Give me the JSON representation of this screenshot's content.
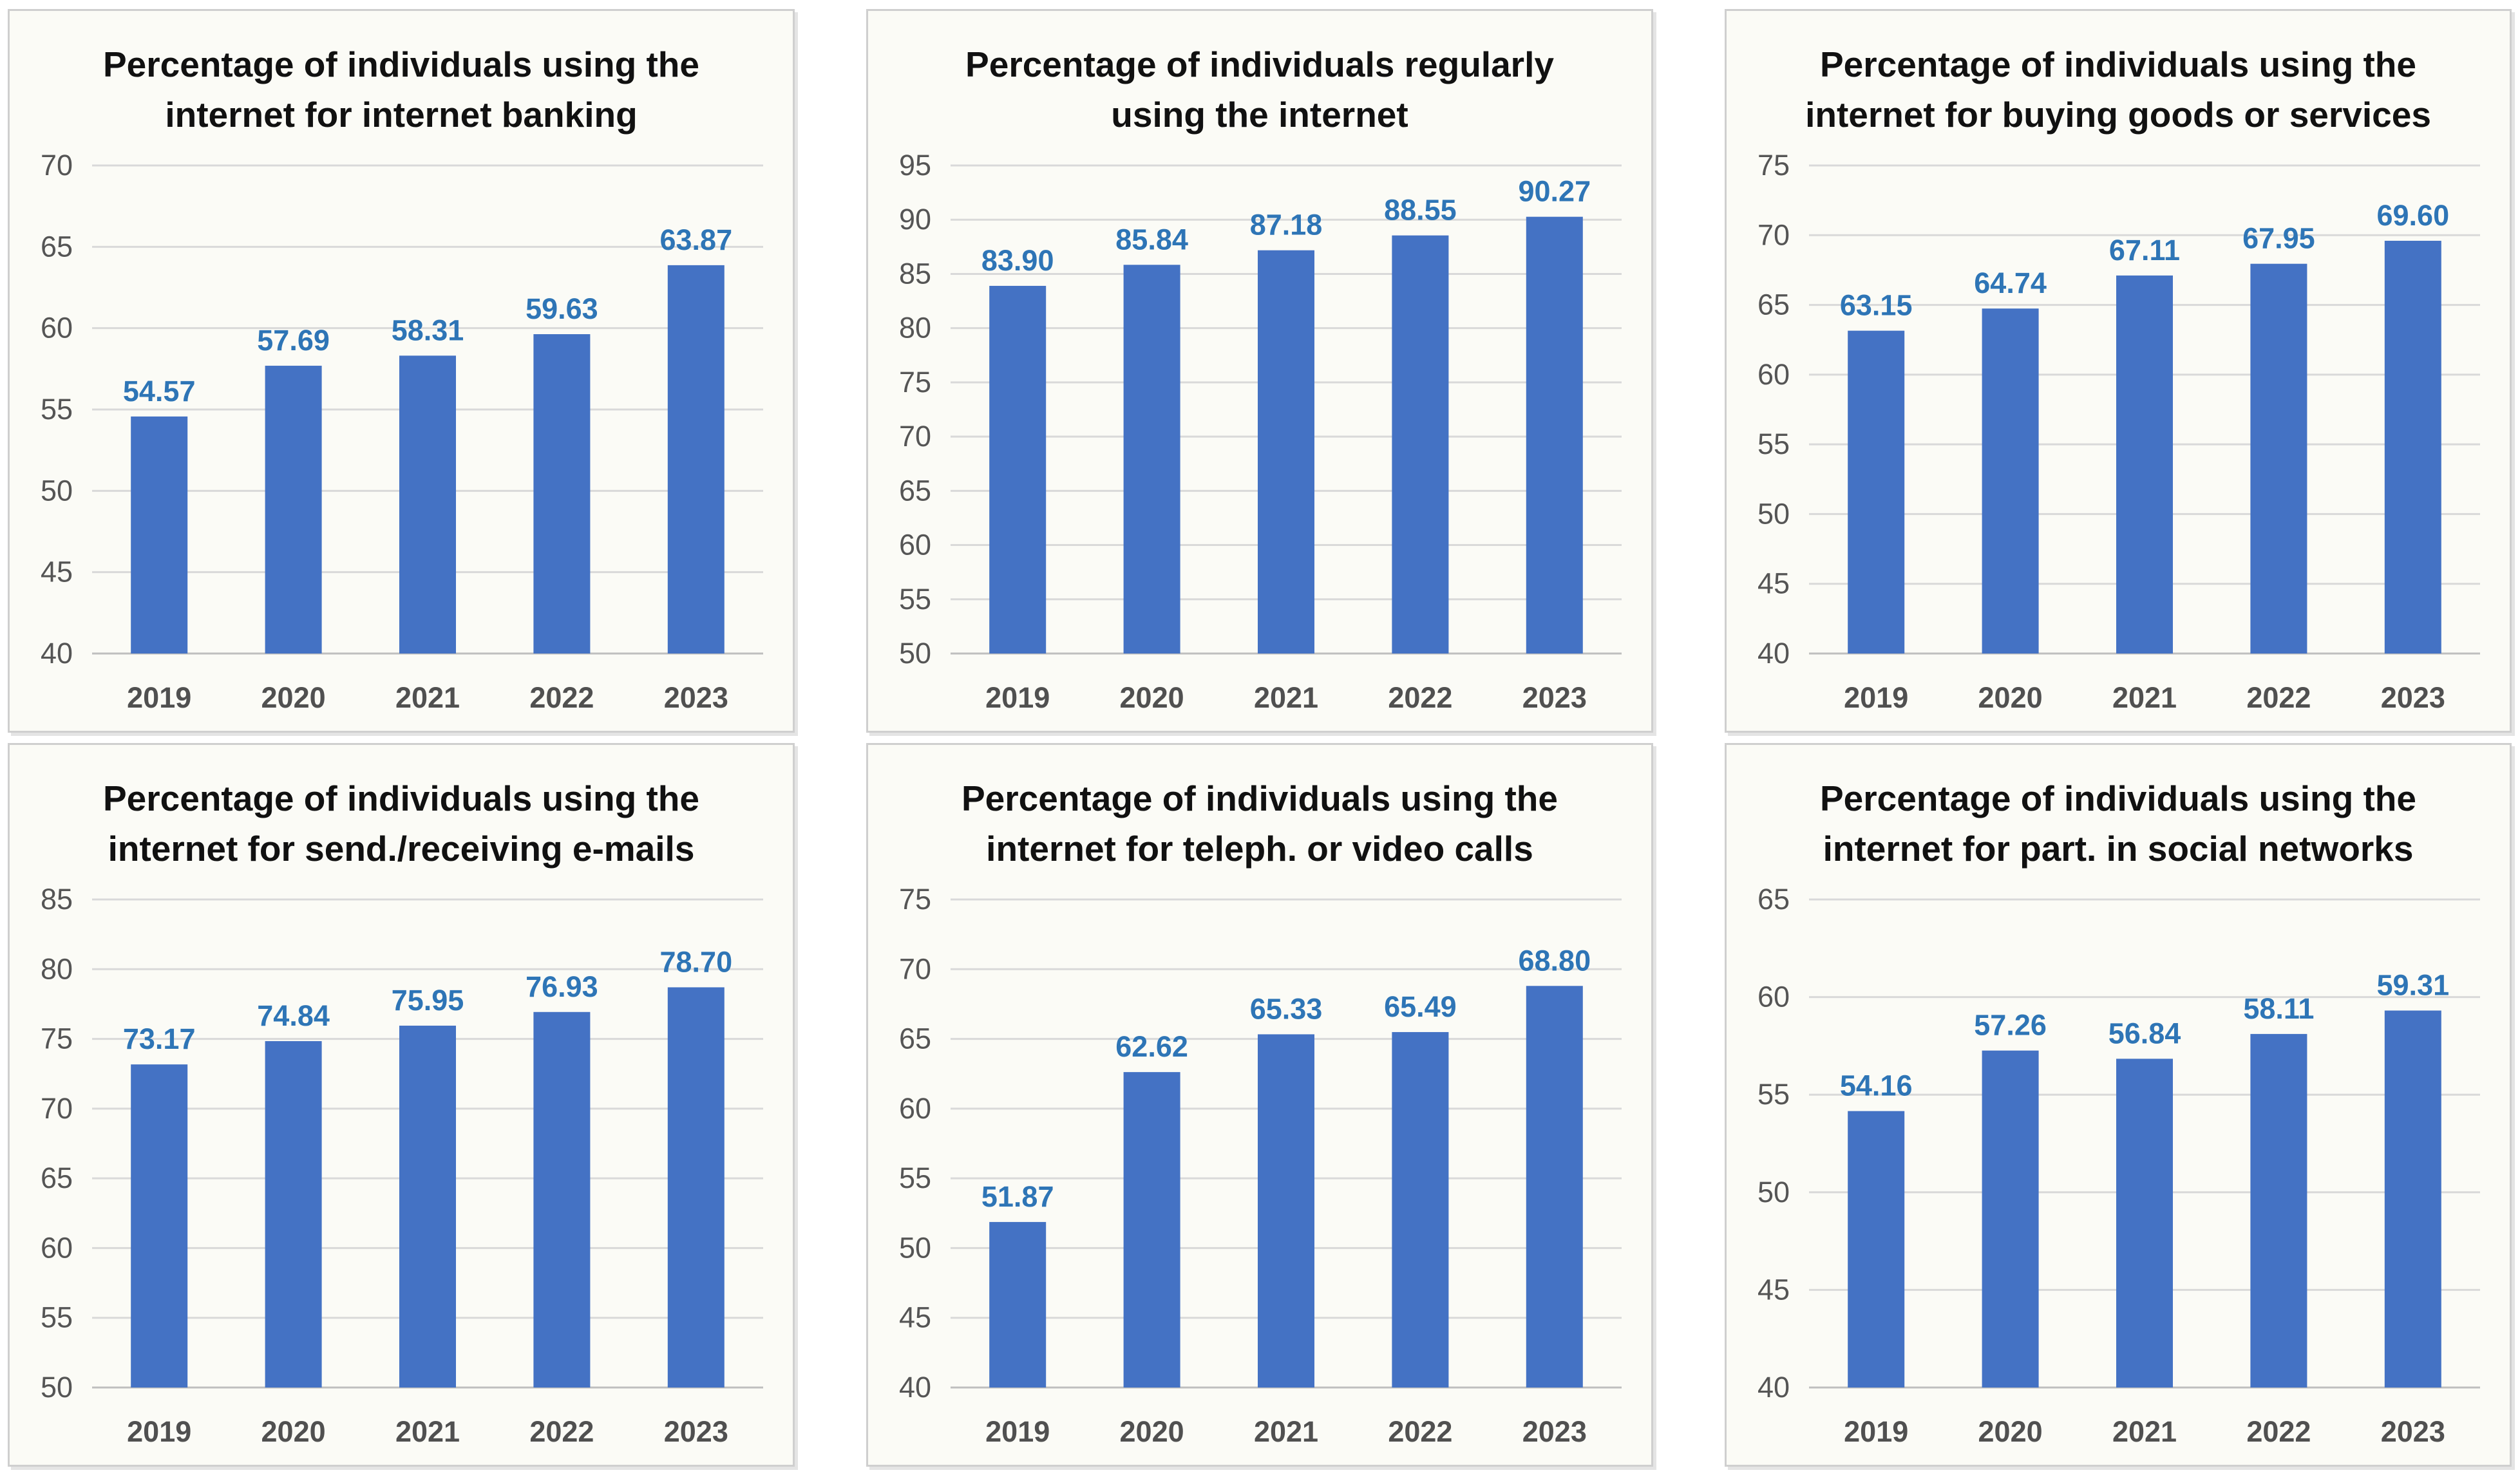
{
  "colors": {
    "bar": "#4472c4",
    "label": "#2e75b6",
    "grid": "#d9d9d9",
    "axis": "#bfbfbf"
  },
  "chart_data": [
    {
      "type": "bar",
      "title": "Percentage of individuals using the internet for internet banking",
      "title_lines": [
        "Percentage of individuals using the",
        "internet for internet banking"
      ],
      "categories": [
        "2019",
        "2020",
        "2021",
        "2022",
        "2023"
      ],
      "values": [
        54.57,
        57.69,
        58.31,
        59.63,
        63.87
      ],
      "value_labels": [
        "54.57",
        "57.69",
        "58.31",
        "59.63",
        "63.87"
      ],
      "ylim": [
        40,
        70
      ],
      "yticks": [
        "40",
        "45",
        "50",
        "55",
        "60",
        "65",
        "70"
      ],
      "grid": true
    },
    {
      "type": "bar",
      "title": "Percentage of individuals regularly using the internet",
      "title_lines": [
        "Percentage of individuals regularly",
        "using the internet"
      ],
      "categories": [
        "2019",
        "2020",
        "2021",
        "2022",
        "2023"
      ],
      "values": [
        83.9,
        85.84,
        87.18,
        88.55,
        90.27
      ],
      "value_labels": [
        "83.90",
        "85.84",
        "87.18",
        "88.55",
        "90.27"
      ],
      "ylim": [
        50,
        95
      ],
      "yticks": [
        "50",
        "55",
        "60",
        "65",
        "70",
        "75",
        "80",
        "85",
        "90",
        "95"
      ],
      "grid": true
    },
    {
      "type": "bar",
      "title": "Percentage of individuals using the internet for buying goods or services",
      "title_lines": [
        "Percentage of individuals using the",
        "internet for buying goods or services"
      ],
      "categories": [
        "2019",
        "2020",
        "2021",
        "2022",
        "2023"
      ],
      "values": [
        63.15,
        64.74,
        67.11,
        67.95,
        69.6
      ],
      "value_labels": [
        "63.15",
        "64.74",
        "67.11",
        "67.95",
        "69.60"
      ],
      "ylim": [
        40,
        75
      ],
      "yticks": [
        "40",
        "45",
        "50",
        "55",
        "60",
        "65",
        "70",
        "75"
      ],
      "grid": true
    },
    {
      "type": "bar",
      "title": "Percentage of individuals using the internet for send./receiving e-mails",
      "title_lines": [
        "Percentage of individuals using the",
        "internet for send./receiving e-mails"
      ],
      "categories": [
        "2019",
        "2020",
        "2021",
        "2022",
        "2023"
      ],
      "values": [
        73.17,
        74.84,
        75.95,
        76.93,
        78.7
      ],
      "value_labels": [
        "73.17",
        "74.84",
        "75.95",
        "76.93",
        "78.70"
      ],
      "ylim": [
        50,
        85
      ],
      "yticks": [
        "50",
        "55",
        "60",
        "65",
        "70",
        "75",
        "80",
        "85"
      ],
      "grid": true
    },
    {
      "type": "bar",
      "title": "Percentage of individuals using the internet for teleph. or video calls",
      "title_lines": [
        "Percentage of individuals using the",
        "internet for teleph. or video calls"
      ],
      "categories": [
        "2019",
        "2020",
        "2021",
        "2022",
        "2023"
      ],
      "values": [
        51.87,
        62.62,
        65.33,
        65.49,
        68.8
      ],
      "value_labels": [
        "51.87",
        "62.62",
        "65.33",
        "65.49",
        "68.80"
      ],
      "ylim": [
        40,
        75
      ],
      "yticks": [
        "40",
        "45",
        "50",
        "55",
        "60",
        "65",
        "70",
        "75"
      ],
      "grid": true
    },
    {
      "type": "bar",
      "title": "Percentage of individuals using the internet for part. in social networks",
      "title_lines": [
        "Percentage of individuals using the",
        "internet for part. in social networks"
      ],
      "categories": [
        "2019",
        "2020",
        "2021",
        "2022",
        "2023"
      ],
      "values": [
        54.16,
        57.26,
        56.84,
        58.11,
        59.31
      ],
      "value_labels": [
        "54.16",
        "57.26",
        "56.84",
        "58.11",
        "59.31"
      ],
      "ylim": [
        40,
        65
      ],
      "yticks": [
        "40",
        "45",
        "50",
        "55",
        "60",
        "65"
      ],
      "grid": true
    }
  ]
}
